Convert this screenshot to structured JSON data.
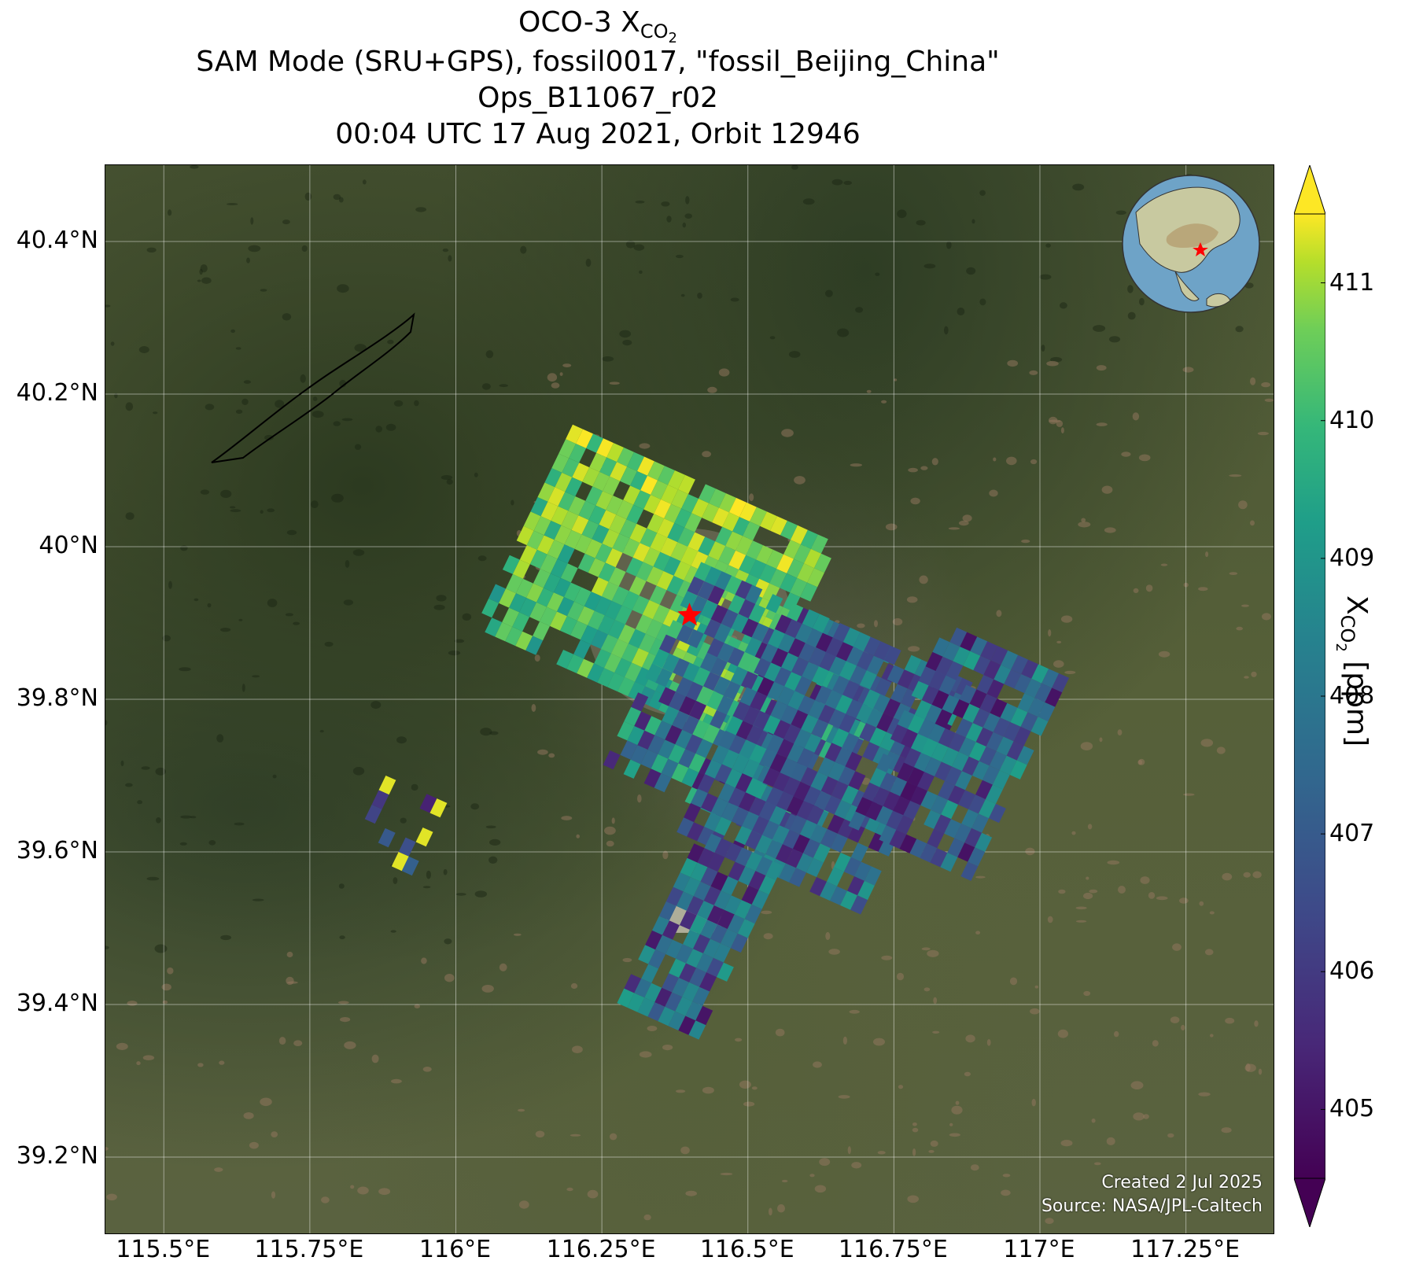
{
  "title": {
    "line1_prefix": "OCO-3 X",
    "line1_sub": "CO",
    "line1_subsub": "2",
    "line2": "SAM Mode (SRU+GPS), fossil0017, \"fossil_Beijing_China\"",
    "line3": "Ops_B11067_r02",
    "line4": "00:04 UTC 17 Aug 2021, Orbit 12946"
  },
  "map": {
    "lon_range": [
      115.4,
      117.4
    ],
    "lat_range": [
      39.1,
      40.5
    ],
    "lat_ticks": [
      {
        "value": 40.4,
        "label": "40.4°N"
      },
      {
        "value": 40.2,
        "label": "40.2°N"
      },
      {
        "value": 40.0,
        "label": "40°N"
      },
      {
        "value": 39.8,
        "label": "39.8°N"
      },
      {
        "value": 39.6,
        "label": "39.6°N"
      },
      {
        "value": 39.4,
        "label": "39.4°N"
      },
      {
        "value": 39.2,
        "label": "39.2°N"
      }
    ],
    "lon_ticks": [
      {
        "value": 115.5,
        "label": "115.5°E"
      },
      {
        "value": 115.75,
        "label": "115.75°E"
      },
      {
        "value": 116.0,
        "label": "116°E"
      },
      {
        "value": 116.25,
        "label": "116.25°E"
      },
      {
        "value": 116.5,
        "label": "116.5°E"
      },
      {
        "value": 116.75,
        "label": "116.75°E"
      },
      {
        "value": 117.0,
        "label": "117°E"
      },
      {
        "value": 117.25,
        "label": "117.25°E"
      }
    ],
    "target": {
      "lon": 116.4,
      "lat": 39.91,
      "marker": "red-star-icon",
      "color": "#ff0000"
    },
    "credit_line1": "Created 2 Jul 2025",
    "credit_line2": "Source: NASA/JPL-Caltech"
  },
  "colorbar": {
    "vmin": 404.5,
    "vmax": 411.5,
    "colormap": "viridis",
    "extend": "both",
    "ticks": [
      405,
      406,
      407,
      408,
      409,
      410,
      411
    ],
    "label_prefix": "X",
    "label_sub": "CO",
    "label_subsub": "2",
    "label_suffix": " [ppm]"
  },
  "soundings": {
    "swaths": [
      {
        "origin": [
          116.2,
          40.16
        ],
        "rows": 14,
        "cols": 26,
        "value_pattern": "north-high"
      },
      {
        "origin": [
          116.42,
          39.98
        ],
        "rows": 14,
        "cols": 20,
        "value_pattern": "mixed"
      },
      {
        "origin": [
          116.57,
          39.93
        ],
        "rows": 16,
        "cols": 18,
        "value_pattern": "low"
      },
      {
        "origin": [
          116.84,
          39.9
        ],
        "rows": 14,
        "cols": 12,
        "value_pattern": "low"
      },
      {
        "origin": [
          116.42,
          39.63
        ],
        "rows": 12,
        "cols": 8,
        "value_pattern": "low"
      },
      {
        "origin": [
          115.88,
          39.7
        ],
        "rows": 5,
        "cols": 6,
        "value_pattern": "west"
      }
    ]
  }
}
